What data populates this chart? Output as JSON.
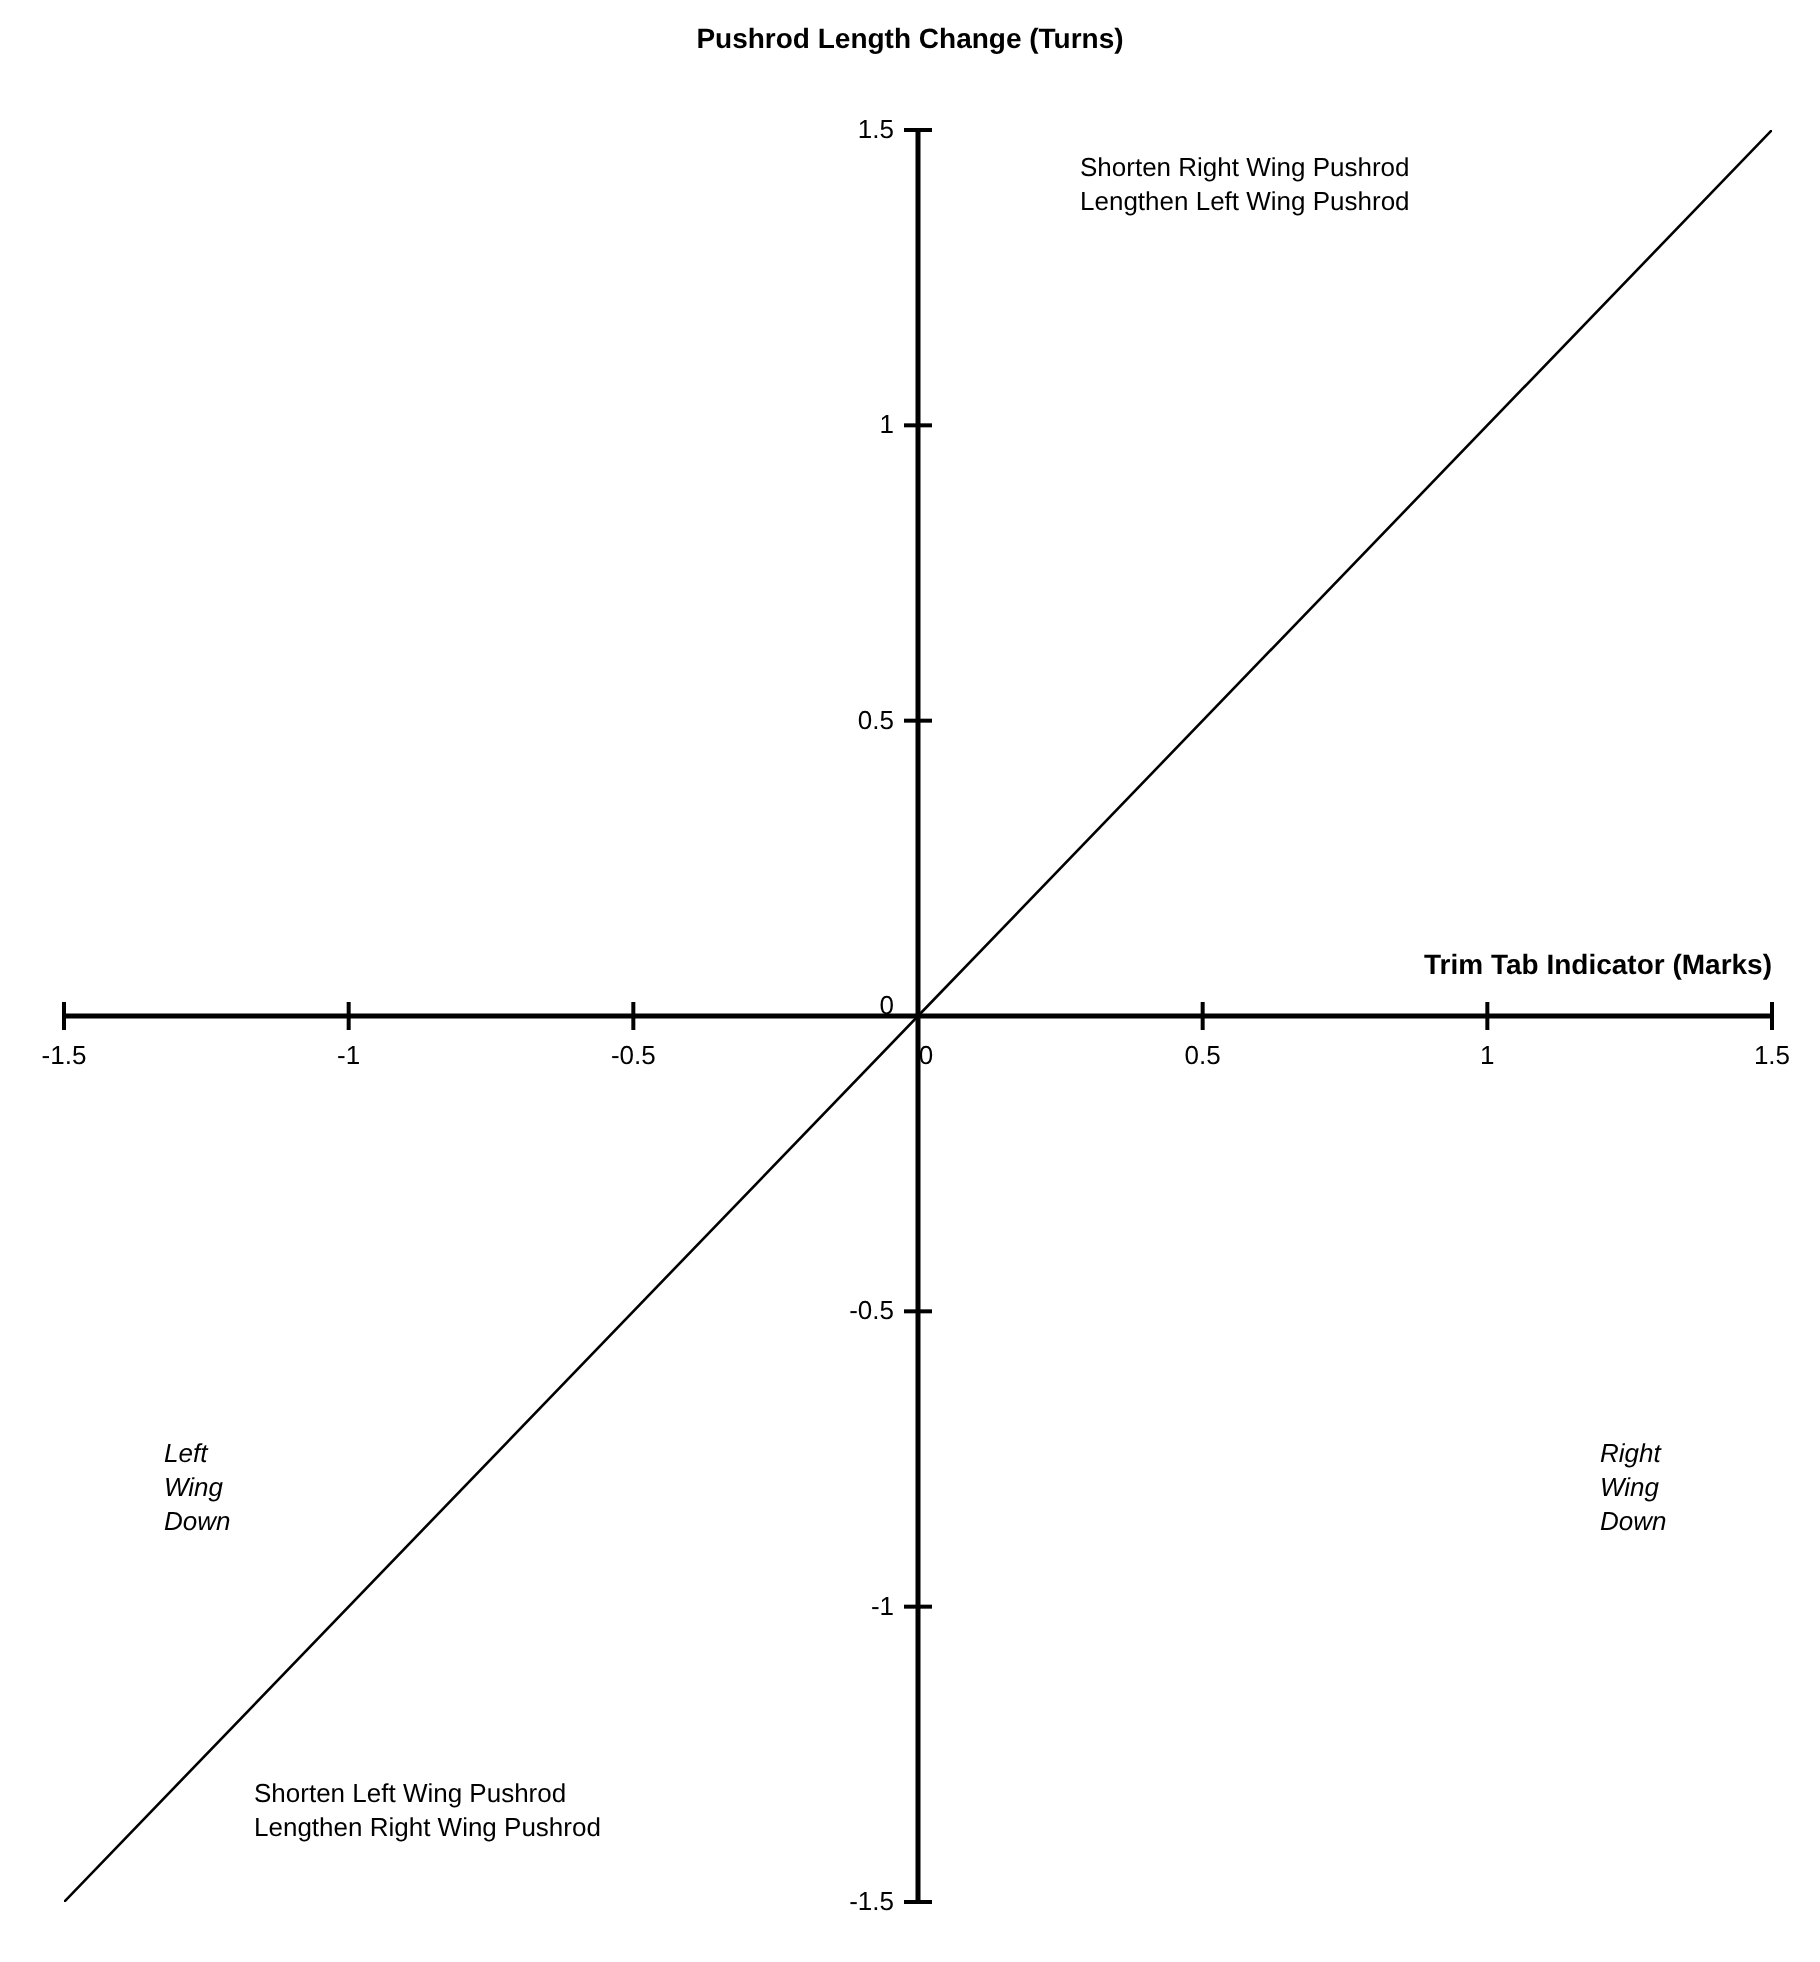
{
  "chart_data": {
    "type": "line",
    "ylabel": "Pushrod Length Change (Turns)",
    "xlabel": "Trim Tab Indicator (Marks)",
    "x": [
      -1.5,
      0,
      1.5
    ],
    "series": [
      {
        "color": "#000000",
        "values": [
          -1.5,
          0,
          1.5
        ]
      }
    ],
    "xlim": [
      -1.5,
      1.5
    ],
    "ylim": [
      -1.5,
      1.5
    ],
    "xticks": [
      -1.5,
      -1,
      -0.5,
      0,
      0.5,
      1,
      1.5
    ],
    "yticks": [
      -1.5,
      -1,
      -0.5,
      0,
      0.5,
      1,
      1.5
    ],
    "grid": false,
    "legend": false,
    "marker": "none",
    "line_style": "solid",
    "annotations": [
      "Shorten Right Wing Pushrod\nLengthen Left Wing Pushrod",
      "Left\nWing\nDown",
      "Right\nWing\nDown",
      "Shorten Left Wing Pushrod\nLengthen Right Wing Pushrod"
    ]
  }
}
